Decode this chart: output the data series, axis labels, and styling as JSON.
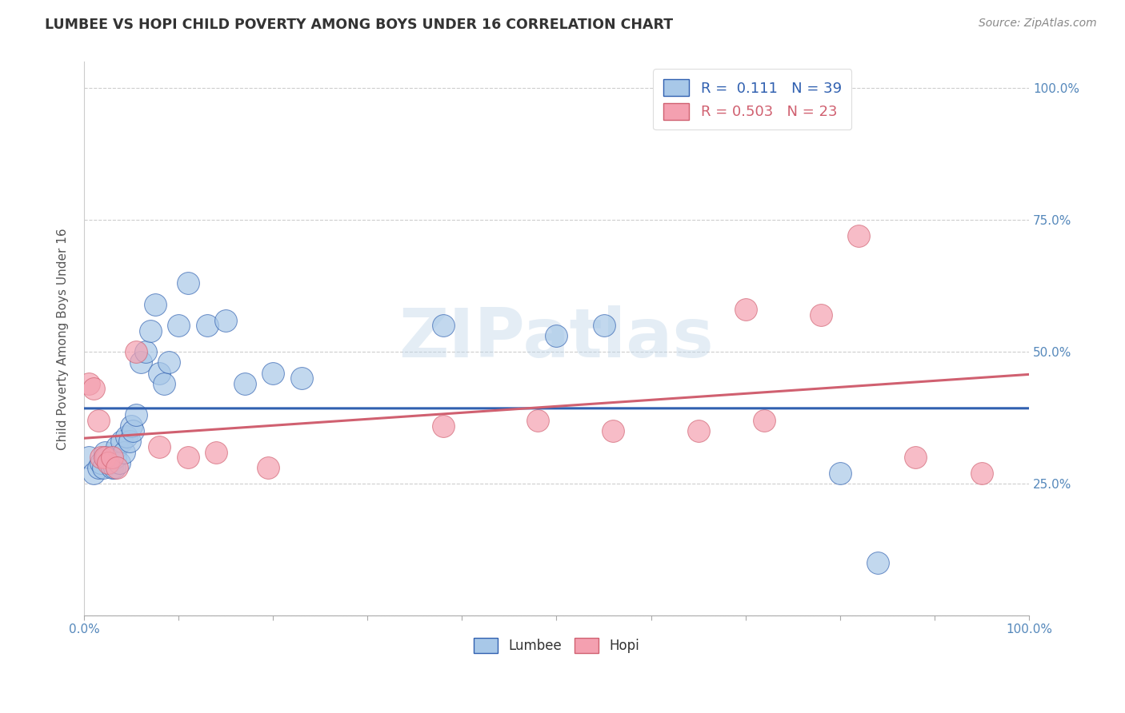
{
  "title": "LUMBEE VS HOPI CHILD POVERTY AMONG BOYS UNDER 16 CORRELATION CHART",
  "source_text": "Source: ZipAtlas.com",
  "ylabel": "Child Poverty Among Boys Under 16",
  "watermark": "ZIPatlas",
  "legend_items": [
    {
      "label": "Lumbee",
      "R": "0.111",
      "N": "39",
      "color": "#a8c8e8"
    },
    {
      "label": "Hopi",
      "R": "0.503",
      "N": "23",
      "color": "#f4a0b0"
    }
  ],
  "lumbee_color": "#a8c8e8",
  "hopi_color": "#f4a0b0",
  "lumbee_line_color": "#3060b0",
  "hopi_line_color": "#d06070",
  "lumbee_x": [
    0.005,
    0.01,
    0.015,
    0.018,
    0.02,
    0.022,
    0.024,
    0.027,
    0.03,
    0.032,
    0.033,
    0.035,
    0.037,
    0.04,
    0.042,
    0.045,
    0.048,
    0.05,
    0.052,
    0.055,
    0.06,
    0.065,
    0.07,
    0.075,
    0.08,
    0.085,
    0.09,
    0.1,
    0.11,
    0.13,
    0.15,
    0.17,
    0.2,
    0.23,
    0.38,
    0.5,
    0.55,
    0.8,
    0.84
  ],
  "lumbee_y": [
    0.3,
    0.27,
    0.28,
    0.29,
    0.28,
    0.31,
    0.3,
    0.29,
    0.28,
    0.28,
    0.3,
    0.32,
    0.29,
    0.33,
    0.31,
    0.34,
    0.33,
    0.36,
    0.35,
    0.38,
    0.48,
    0.5,
    0.54,
    0.59,
    0.46,
    0.44,
    0.48,
    0.55,
    0.63,
    0.55,
    0.56,
    0.44,
    0.46,
    0.45,
    0.55,
    0.53,
    0.55,
    0.27,
    0.1
  ],
  "hopi_x": [
    0.005,
    0.01,
    0.015,
    0.018,
    0.022,
    0.025,
    0.03,
    0.035,
    0.055,
    0.08,
    0.11,
    0.14,
    0.195,
    0.38,
    0.48,
    0.56,
    0.65,
    0.7,
    0.72,
    0.78,
    0.82,
    0.88,
    0.95
  ],
  "hopi_y": [
    0.44,
    0.43,
    0.37,
    0.3,
    0.3,
    0.29,
    0.3,
    0.28,
    0.5,
    0.32,
    0.3,
    0.31,
    0.28,
    0.36,
    0.37,
    0.35,
    0.35,
    0.58,
    0.37,
    0.57,
    0.72,
    0.3,
    0.27
  ],
  "yticks": [
    0.0,
    0.25,
    0.5,
    0.75,
    1.0
  ],
  "ytick_labels_right": [
    "",
    "25.0%",
    "50.0%",
    "75.0%",
    "100.0%"
  ],
  "xlim": [
    0.0,
    1.0
  ],
  "ylim": [
    0.0,
    1.05
  ]
}
